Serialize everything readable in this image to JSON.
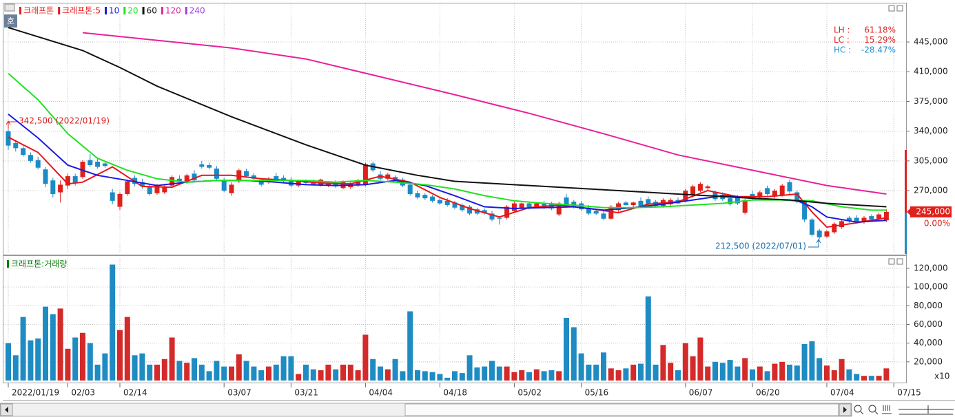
{
  "chart_data": {
    "type": "candlestick",
    "name": "크래프톤",
    "icon_label": "호",
    "up_color": "#e0201b",
    "down_color": "#1a8bc6",
    "categories": [
      "2022/01/19",
      null,
      null,
      null,
      null,
      null,
      null,
      null,
      "02/03",
      null,
      null,
      null,
      null,
      null,
      null,
      "02/14",
      null,
      null,
      null,
      null,
      null,
      null,
      null,
      null,
      null,
      null,
      null,
      null,
      null,
      "03/07",
      null,
      null,
      null,
      null,
      null,
      null,
      null,
      null,
      "03/21",
      null,
      null,
      null,
      null,
      null,
      null,
      null,
      null,
      null,
      "04/04",
      null,
      null,
      null,
      null,
      null,
      null,
      null,
      null,
      null,
      "04/18",
      null,
      null,
      null,
      null,
      null,
      null,
      null,
      null,
      null,
      "05/02",
      null,
      null,
      null,
      null,
      null,
      null,
      null,
      null,
      "05/16",
      null,
      null,
      null,
      null,
      null,
      null,
      null,
      null,
      null,
      null,
      null,
      null,
      null,
      "06/07",
      null,
      null,
      null,
      null,
      null,
      null,
      null,
      null,
      "06/20",
      null,
      null,
      null,
      null,
      null,
      null,
      null,
      null,
      null,
      "07/04",
      null,
      null,
      null,
      null,
      null,
      null,
      null,
      null,
      "07/15"
    ],
    "open": [
      340000,
      326000,
      320000,
      312000,
      306000,
      295000,
      282000,
      268000,
      276000,
      287000,
      286000,
      306000,
      304000,
      302000,
      268000,
      251000,
      266000,
      285000,
      280000,
      275000,
      267000,
      268000,
      276000,
      284000,
      280000,
      290000,
      301000,
      300000,
      296000,
      282000,
      267000,
      281000,
      293000,
      288000,
      283000,
      280000,
      287000,
      285000,
      283000,
      276000,
      281000,
      280000,
      277000,
      276000,
      279000,
      273000,
      274000,
      276000,
      277000,
      302000,
      289000,
      284000,
      286000,
      283000,
      277000,
      267000,
      265000,
      263000,
      259000,
      258000,
      256000,
      253000,
      251000,
      248000,
      247000,
      243000,
      238000,
      238000,
      246000,
      249000,
      255000,
      251000,
      255000,
      254000,
      242000,
      262000,
      257000,
      255000,
      250000,
      246000,
      243000,
      237000,
      247000,
      256000,
      253000,
      258000,
      260000,
      257000,
      252000,
      254000,
      259000,
      258000,
      265000,
      270000,
      273000,
      268000,
      265000,
      261000,
      262000,
      244000,
      266000,
      262000,
      273000,
      263000,
      265000,
      280000,
      268000,
      257000,
      236000,
      223000,
      216000,
      221000,
      227000,
      238000,
      238000,
      233000,
      240000,
      236000,
      235000,
      null
    ],
    "high": [
      342500,
      330000,
      323000,
      315000,
      310000,
      298000,
      285000,
      282000,
      290000,
      290000,
      306000,
      313000,
      307000,
      305000,
      272000,
      268000,
      283000,
      288000,
      284000,
      277000,
      278000,
      278000,
      288000,
      288000,
      290000,
      294000,
      305000,
      303000,
      299000,
      285000,
      280000,
      296000,
      296000,
      291000,
      285000,
      286000,
      291000,
      288000,
      286000,
      283000,
      283000,
      283000,
      284000,
      281000,
      282000,
      282000,
      280000,
      284000,
      303000,
      304000,
      293000,
      291000,
      288000,
      285000,
      280000,
      270000,
      267000,
      265000,
      262000,
      261000,
      258000,
      255000,
      253000,
      250000,
      249000,
      246000,
      240000,
      253000,
      257000,
      256000,
      257000,
      256000,
      258000,
      257000,
      257000,
      266000,
      259000,
      258000,
      253000,
      248000,
      246000,
      253000,
      257000,
      258000,
      257000,
      262000,
      263000,
      259000,
      261000,
      261000,
      262000,
      272000,
      277000,
      280000,
      277000,
      270000,
      268000,
      264000,
      265000,
      260000,
      270000,
      270000,
      276000,
      272000,
      278000,
      283000,
      270000,
      259000,
      238000,
      225000,
      224000,
      233000,
      236000,
      240000,
      241000,
      240000,
      242000,
      244000,
      248000,
      null
    ],
    "low": [
      318000,
      316000,
      310000,
      303000,
      295000,
      274000,
      262000,
      256000,
      272000,
      276000,
      284000,
      298000,
      296000,
      297000,
      254000,
      247000,
      264000,
      275000,
      272000,
      264000,
      265000,
      266000,
      274000,
      279000,
      278000,
      280000,
      296000,
      295000,
      281000,
      268000,
      264000,
      279000,
      285000,
      281000,
      275000,
      278000,
      281000,
      280000,
      274000,
      274000,
      277000,
      276000,
      275000,
      274000,
      273000,
      272000,
      272000,
      274000,
      275000,
      292000,
      282000,
      282000,
      280000,
      274000,
      264000,
      260000,
      259000,
      256000,
      253000,
      251000,
      248000,
      245000,
      241000,
      241000,
      242000,
      234000,
      230000,
      236000,
      244000,
      247000,
      248000,
      249000,
      248000,
      247000,
      240000,
      250000,
      249000,
      246000,
      241000,
      241000,
      235000,
      236000,
      245000,
      252000,
      251000,
      250000,
      252000,
      250000,
      250000,
      252000,
      254000,
      256000,
      262000,
      268000,
      270000,
      258000,
      258000,
      252000,
      253000,
      242000,
      258000,
      259000,
      264000,
      261000,
      263000,
      266000,
      255000,
      233000,
      216000,
      212500,
      214000,
      219000,
      225000,
      232000,
      232000,
      231000,
      234000,
      234000,
      233000,
      null
    ],
    "close": [
      323000,
      320000,
      312000,
      305000,
      297000,
      278000,
      266000,
      277000,
      287000,
      279000,
      304000,
      300000,
      298000,
      299000,
      258000,
      266000,
      281000,
      278000,
      275000,
      266000,
      276000,
      275000,
      286000,
      281000,
      288000,
      282000,
      298000,
      297000,
      284000,
      270000,
      277000,
      294000,
      287000,
      284000,
      277000,
      284000,
      283000,
      282000,
      276000,
      281000,
      279000,
      277000,
      283000,
      279000,
      275000,
      281000,
      279000,
      282000,
      301000,
      294000,
      284000,
      289000,
      282000,
      276000,
      266000,
      262000,
      261000,
      258000,
      255000,
      253000,
      250000,
      247000,
      243000,
      243000,
      244000,
      236000,
      237000,
      251000,
      255000,
      255000,
      250000,
      255000,
      250000,
      249000,
      255000,
      252000,
      251000,
      248000,
      243000,
      243000,
      237000,
      251000,
      255000,
      253000,
      256000,
      252000,
      254000,
      252000,
      259000,
      259000,
      255000,
      270000,
      275000,
      278000,
      275000,
      260000,
      260000,
      254000,
      255000,
      259000,
      261000,
      268000,
      266000,
      270000,
      276000,
      269000,
      257000,
      236000,
      218000,
      215000,
      222000,
      231000,
      234000,
      234000,
      233000,
      238000,
      236000,
      242000,
      245000,
      null
    ],
    "series": [
      {
        "name": "크래프톤:5",
        "color": "#e8141b",
        "x": [
          0,
          4,
          8,
          10,
          14,
          18,
          22,
          26,
          30,
          34,
          38,
          42,
          46,
          50,
          54,
          58,
          62,
          66,
          70,
          74,
          78,
          82,
          86,
          90,
          94,
          98,
          102,
          106,
          108,
          110,
          114,
          118
        ],
        "values": [
          333000,
          315000,
          278000,
          280000,
          298000,
          275000,
          274000,
          288000,
          288000,
          284000,
          282000,
          279000,
          278000,
          287000,
          280000,
          262000,
          249000,
          239000,
          250000,
          253000,
          249000,
          244000,
          254000,
          257000,
          270000,
          263000,
          263000,
          266000,
          245000,
          227000,
          232000,
          238000
        ]
      },
      {
        "name": "10",
        "color": "#1a1ae0",
        "x": [
          0,
          4,
          8,
          12,
          16,
          20,
          24,
          28,
          32,
          36,
          40,
          44,
          48,
          52,
          56,
          60,
          64,
          68,
          72,
          76,
          80,
          84,
          88,
          92,
          96,
          100,
          104,
          106,
          108,
          110,
          114,
          118
        ],
        "values": [
          360000,
          332000,
          300000,
          288000,
          282000,
          276000,
          280000,
          282000,
          282000,
          280000,
          277000,
          276000,
          277000,
          282000,
          276000,
          264000,
          251000,
          249000,
          250000,
          251000,
          247000,
          250000,
          254000,
          259000,
          264000,
          261000,
          259000,
          258000,
          251000,
          239000,
          233000,
          235000
        ]
      },
      {
        "name": "20",
        "color": "#22e022",
        "x": [
          0,
          4,
          8,
          12,
          16,
          20,
          24,
          28,
          32,
          36,
          40,
          44,
          48,
          52,
          56,
          60,
          64,
          68,
          72,
          76,
          80,
          84,
          88,
          92,
          96,
          100,
          104,
          108,
          112,
          116,
          118
        ],
        "values": [
          408000,
          377000,
          337000,
          308000,
          294000,
          284000,
          280000,
          282000,
          282000,
          282000,
          282000,
          280000,
          282000,
          280000,
          277000,
          272000,
          264000,
          258000,
          255000,
          253000,
          250000,
          250000,
          251000,
          253000,
          255000,
          259000,
          259000,
          258000,
          251000,
          247000,
          247000
        ]
      },
      {
        "name": "60",
        "color": "#111111",
        "x": [
          0,
          10,
          15,
          20,
          30,
          40,
          48,
          55,
          60,
          70,
          80,
          90,
          100,
          105,
          110,
          118
        ],
        "values": [
          462000,
          435000,
          415000,
          393000,
          357000,
          324000,
          300000,
          288000,
          281000,
          276000,
          271000,
          266000,
          261000,
          259000,
          255000,
          251000
        ]
      },
      {
        "name": "120",
        "color": "#e8209a",
        "x": [
          10,
          20,
          30,
          40,
          50,
          60,
          70,
          80,
          90,
          100,
          110,
          118
        ],
        "values": [
          456000,
          447000,
          438000,
          425000,
          404000,
          383000,
          361000,
          337000,
          312000,
          294000,
          276000,
          266000
        ]
      },
      {
        "name": "240",
        "color": "#9a40e0",
        "x": [],
        "values": []
      }
    ],
    "ylim": [
      196300,
      490400
    ],
    "yticks": [
      {
        "value": 445000,
        "label": "445,000"
      },
      {
        "value": 410000,
        "label": "410,000"
      },
      {
        "value": 375000,
        "label": "375,000"
      },
      {
        "value": 340000,
        "label": "340,000"
      },
      {
        "value": 305000,
        "label": "305,000"
      },
      {
        "value": 270000,
        "label": "270,000"
      }
    ],
    "grid": true,
    "current_price": {
      "value": 245000,
      "label": "245,000"
    },
    "current_change": "0.00%",
    "annotations": [
      {
        "text": "342,500 (2022/01/19)",
        "color": "#d42020"
      },
      {
        "text": "212,500 (2022/07/01)",
        "color": "#1a6fb0"
      }
    ],
    "stats": [
      {
        "label": "LH :",
        "value": "61.18%",
        "color": "#e02020"
      },
      {
        "label": "LC :",
        "value": "15.29%",
        "color": "#e02020"
      },
      {
        "label": "HC :",
        "value": "-28.47%",
        "color": "#1f8bd0"
      }
    ],
    "volume": {
      "type": "bar",
      "title": "크래프톤:거래량",
      "title_color": "#0a7a0a",
      "unit_label": "x10",
      "values": [
        40000,
        27000,
        68000,
        43000,
        45000,
        79000,
        71000,
        77000,
        34000,
        46000,
        51000,
        40000,
        17000,
        29000,
        124000,
        54000,
        68000,
        27000,
        29000,
        17000,
        17000,
        23000,
        46000,
        21000,
        19000,
        24000,
        17000,
        10000,
        21000,
        15000,
        15000,
        28000,
        21000,
        15000,
        11000,
        15000,
        17000,
        26000,
        26000,
        7000,
        17000,
        12000,
        11000,
        17000,
        12000,
        17000,
        17000,
        11000,
        49000,
        23000,
        15000,
        12000,
        23000,
        10000,
        74000,
        11000,
        10000,
        9000,
        7000,
        3000,
        10000,
        8000,
        27000,
        14000,
        15000,
        21000,
        15000,
        15000,
        9000,
        11000,
        9000,
        12000,
        10000,
        11000,
        10000,
        67000,
        57000,
        29000,
        17000,
        17000,
        30000,
        13000,
        11000,
        13000,
        17000,
        18000,
        90000,
        17000,
        38000,
        19000,
        11000,
        40000,
        26000,
        46000,
        15000,
        20000,
        19000,
        22000,
        15000,
        24000,
        12000,
        15000,
        10000,
        18000,
        20000,
        17000,
        16000,
        39000,
        42000,
        24000,
        16000,
        11000,
        23000,
        12000,
        7000,
        5000,
        5000,
        5000,
        13000,
        null
      ],
      "ylim": [
        0,
        131000
      ],
      "yticks": [
        {
          "value": 120000,
          "label": "120,000"
        },
        {
          "value": 100000,
          "label": "100,000"
        },
        {
          "value": 80000,
          "label": "80,000"
        },
        {
          "value": 60000,
          "label": "60,000"
        },
        {
          "value": 40000,
          "label": "40,000"
        },
        {
          "value": 20000,
          "label": "20,000"
        }
      ],
      "grid": true
    }
  }
}
